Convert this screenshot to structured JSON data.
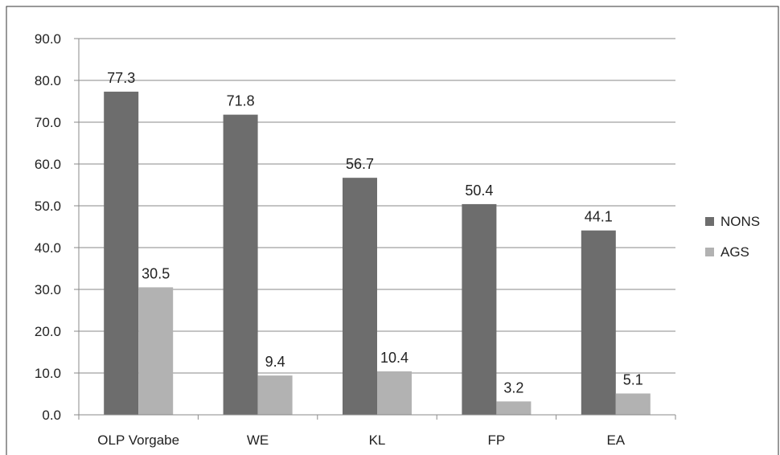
{
  "chart_data": {
    "type": "bar",
    "title": "",
    "xlabel": "",
    "ylabel": "",
    "categories": [
      "OLP Vorgabe",
      "WE",
      "KL",
      "FP",
      "EA"
    ],
    "series": [
      {
        "name": "NONS",
        "color": "#6d6d6d",
        "values": [
          77.3,
          71.8,
          56.7,
          50.4,
          44.1
        ]
      },
      {
        "name": "AGS",
        "color": "#b2b2b2",
        "values": [
          30.5,
          9.4,
          10.4,
          3.2,
          5.1
        ]
      }
    ],
    "data_labels": [
      [
        "77.3",
        "71.8",
        "56.7",
        "50.4",
        "44.1"
      ],
      [
        "30.5",
        "9.4",
        "10.4",
        "3.2",
        "5.1"
      ]
    ],
    "ylim": [
      0,
      90
    ],
    "yticks": [
      "0.0",
      "10.0",
      "20.0",
      "30.0",
      "40.0",
      "50.0",
      "60.0",
      "70.0",
      "80.0",
      "90.0"
    ],
    "grid": true,
    "legend_position": "right"
  }
}
